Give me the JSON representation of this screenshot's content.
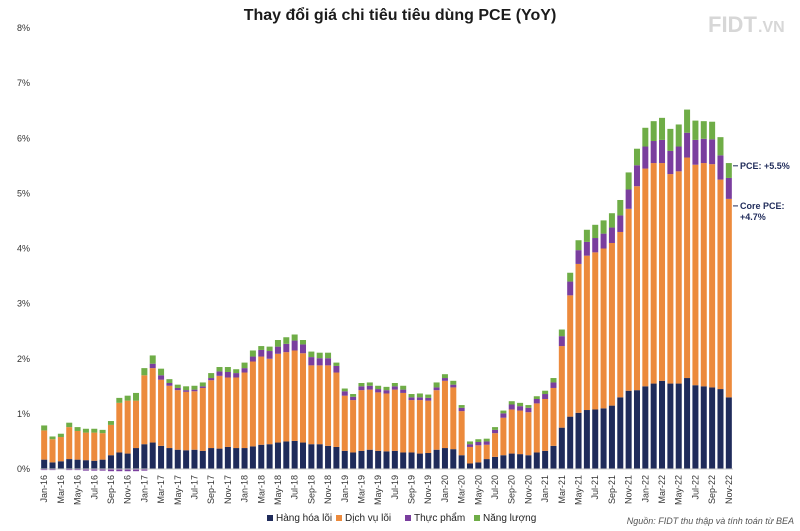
{
  "header": {
    "title": "Thay đổi giá chi tiêu tiêu dùng PCE (YoY)"
  },
  "logo": {
    "brand": "FIDT",
    "suffix": ".VN"
  },
  "footer": {
    "source": "Nguồn: FIDT thu thập và tính toán từ BEA"
  },
  "colors": {
    "goods": "#1f2b5a",
    "services": "#ec8a3c",
    "food": "#7a3e9e",
    "energy": "#6fad47",
    "axis": "#c8c8c8"
  },
  "chart_data": {
    "type": "bar",
    "stacked": true,
    "title": "Thay đổi giá chi tiêu tiêu dùng PCE (YoY)",
    "ylim": [
      0,
      8
    ],
    "yticks": [
      "0%",
      "1%",
      "2%",
      "3%",
      "4%",
      "5%",
      "6%",
      "7%",
      "8%"
    ],
    "grid": false,
    "legend_position": "bottom",
    "categories": [
      "Jan-16",
      "Feb-16",
      "Mar-16",
      "Apr-16",
      "May-16",
      "Jun-16",
      "Jul-16",
      "Aug-16",
      "Sep-16",
      "Oct-16",
      "Nov-16",
      "Dec-16",
      "Jan-17",
      "Feb-17",
      "Mar-17",
      "Apr-17",
      "May-17",
      "Jun-17",
      "Jul-17",
      "Aug-17",
      "Sep-17",
      "Oct-17",
      "Nov-17",
      "Dec-17",
      "Jan-18",
      "Feb-18",
      "Mar-18",
      "Apr-18",
      "May-18",
      "Jun-18",
      "Jul-18",
      "Aug-18",
      "Sep-18",
      "Oct-18",
      "Nov-18",
      "Dec-18",
      "Jan-19",
      "Feb-19",
      "Mar-19",
      "Apr-19",
      "May-19",
      "Jun-19",
      "Jul-19",
      "Aug-19",
      "Sep-19",
      "Oct-19",
      "Nov-19",
      "Dec-19",
      "Jan-20",
      "Feb-20",
      "Mar-20",
      "Apr-20",
      "May-20",
      "Jun-20",
      "Jul-20",
      "Aug-20",
      "Sep-20",
      "Oct-20",
      "Nov-20",
      "Dec-20",
      "Jan-21",
      "Feb-21",
      "Mar-21",
      "Apr-21",
      "May-21",
      "Jun-21",
      "Jul-21",
      "Aug-21",
      "Sep-21",
      "Oct-21",
      "Nov-21",
      "Dec-21",
      "Jan-22",
      "Feb-22",
      "Mar-22",
      "Apr-22",
      "May-22",
      "Jun-22",
      "Jul-22",
      "Aug-22",
      "Sep-22",
      "Oct-22",
      "Nov-22"
    ],
    "xtick_labels": [
      "Jan-16",
      "Mar-16",
      "May-16",
      "Jul-16",
      "Sep-16",
      "Nov-16",
      "Jan-17",
      "Mar-17",
      "May-17",
      "Jul-17",
      "Sep-17",
      "Nov-17",
      "Jan-18",
      "Mar-18",
      "May-18",
      "Jul-18",
      "Sep-18",
      "Nov-18",
      "Jan-19",
      "Mar-19",
      "May-19",
      "Jul-19",
      "Sep-19",
      "Nov-19",
      "Jan-20",
      "Mar-20",
      "May-20",
      "Jul-20",
      "Sep-20",
      "Nov-20",
      "Jan-21",
      "Mar-21",
      "May-21",
      "Jul-21",
      "Sep-21",
      "Nov-21",
      "Jan-22",
      "Mar-22",
      "May-22",
      "Jul-22",
      "Sep-22",
      "Nov-22"
    ],
    "series": [
      {
        "name": "Hàng hóa lõi",
        "color": "#1f2b5a",
        "values": [
          0.17,
          0.12,
          0.14,
          0.18,
          0.17,
          0.16,
          0.15,
          0.17,
          0.25,
          0.3,
          0.28,
          0.38,
          0.45,
          0.48,
          0.42,
          0.38,
          0.35,
          0.34,
          0.35,
          0.33,
          0.38,
          0.37,
          0.4,
          0.38,
          0.38,
          0.41,
          0.44,
          0.45,
          0.48,
          0.5,
          0.51,
          0.48,
          0.45,
          0.45,
          0.42,
          0.4,
          0.33,
          0.3,
          0.33,
          0.35,
          0.33,
          0.32,
          0.33,
          0.3,
          0.3,
          0.28,
          0.29,
          0.35,
          0.38,
          0.36,
          0.25,
          0.1,
          0.12,
          0.18,
          0.22,
          0.25,
          0.28,
          0.27,
          0.25,
          0.3,
          0.33,
          0.42,
          0.75,
          0.95,
          1.02,
          1.07,
          1.08,
          1.1,
          1.15,
          1.3,
          1.42,
          1.43,
          1.5,
          1.55,
          1.6,
          1.55,
          1.55,
          1.65,
          1.52,
          1.5,
          1.48,
          1.45,
          1.3
        ]
      },
      {
        "name": "Dịch vụ lõi",
        "color": "#ec8a3c",
        "values": [
          0.53,
          0.42,
          0.44,
          0.58,
          0.52,
          0.5,
          0.51,
          0.48,
          0.55,
          0.9,
          0.96,
          0.86,
          1.25,
          1.35,
          1.2,
          1.13,
          1.08,
          1.06,
          1.06,
          1.14,
          1.23,
          1.32,
          1.26,
          1.28,
          1.37,
          1.54,
          1.6,
          1.55,
          1.61,
          1.62,
          1.64,
          1.62,
          1.43,
          1.43,
          1.46,
          1.35,
          1.0,
          0.95,
          1.1,
          1.09,
          1.06,
          1.05,
          1.11,
          1.08,
          0.95,
          0.97,
          0.95,
          1.08,
          1.22,
          1.12,
          0.8,
          0.3,
          0.31,
          0.26,
          0.43,
          0.68,
          0.8,
          0.79,
          0.78,
          0.89,
          0.94,
          1.05,
          1.48,
          2.2,
          2.7,
          2.8,
          2.85,
          2.9,
          2.95,
          3.0,
          3.3,
          3.7,
          3.95,
          4.0,
          3.95,
          3.8,
          3.85,
          4.0,
          4.0,
          4.05,
          4.05,
          3.8,
          3.6
        ]
      },
      {
        "name": "Thực phẩm",
        "color": "#7a3e9e",
        "values": [
          -0.02,
          -0.02,
          -0.01,
          -0.02,
          -0.02,
          -0.03,
          -0.03,
          -0.03,
          -0.04,
          -0.04,
          -0.04,
          -0.04,
          -0.03,
          0.08,
          0.08,
          0.05,
          0.04,
          0.03,
          0.03,
          0.03,
          0.04,
          0.08,
          0.1,
          0.08,
          0.08,
          0.09,
          0.12,
          0.14,
          0.13,
          0.15,
          0.18,
          0.16,
          0.15,
          0.13,
          0.13,
          0.12,
          0.08,
          0.06,
          0.07,
          0.07,
          0.06,
          0.06,
          0.06,
          0.06,
          0.05,
          0.05,
          0.05,
          0.05,
          0.05,
          0.05,
          0.06,
          0.05,
          0.06,
          0.06,
          0.06,
          0.08,
          0.09,
          0.08,
          0.08,
          0.08,
          0.09,
          0.1,
          0.18,
          0.25,
          0.25,
          0.25,
          0.26,
          0.27,
          0.28,
          0.3,
          0.35,
          0.38,
          0.4,
          0.4,
          0.42,
          0.42,
          0.45,
          0.45,
          0.45,
          0.44,
          0.45,
          0.44,
          0.38
        ]
      },
      {
        "name": "Năng lượng",
        "color": "#6fad47",
        "values": [
          0.09,
          0.05,
          0.06,
          0.08,
          0.07,
          0.07,
          0.07,
          0.06,
          0.07,
          0.09,
          0.09,
          0.14,
          0.13,
          0.15,
          0.12,
          0.07,
          0.06,
          0.07,
          0.07,
          0.07,
          0.09,
          0.08,
          0.09,
          0.07,
          0.1,
          0.11,
          0.07,
          0.08,
          0.12,
          0.12,
          0.11,
          0.08,
          0.1,
          0.1,
          0.1,
          0.06,
          0.05,
          0.05,
          0.06,
          0.06,
          0.06,
          0.06,
          0.06,
          0.07,
          0.06,
          0.07,
          0.06,
          0.09,
          0.07,
          0.07,
          0.05,
          0.05,
          0.05,
          0.05,
          0.05,
          0.05,
          0.06,
          0.06,
          0.05,
          0.05,
          0.06,
          0.08,
          0.12,
          0.16,
          0.18,
          0.22,
          0.24,
          0.24,
          0.26,
          0.28,
          0.31,
          0.3,
          0.34,
          0.36,
          0.4,
          0.4,
          0.4,
          0.42,
          0.35,
          0.32,
          0.32,
          0.33,
          0.27
        ]
      }
    ],
    "annotations": [
      {
        "text": "PCE: +5.5%",
        "category": "Nov-22",
        "value": 5.5
      },
      {
        "text": "Core PCE: +4.7%",
        "category": "Nov-22",
        "value": 4.7
      }
    ]
  },
  "legend": [
    {
      "label": "Hàng hóa lõi",
      "color": "#1f2b5a"
    },
    {
      "label": "Dịch vụ lõi",
      "color": "#ec8a3c"
    },
    {
      "label": "Thực phẩm",
      "color": "#7a3e9e"
    },
    {
      "label": "Năng lượng",
      "color": "#6fad47"
    }
  ]
}
